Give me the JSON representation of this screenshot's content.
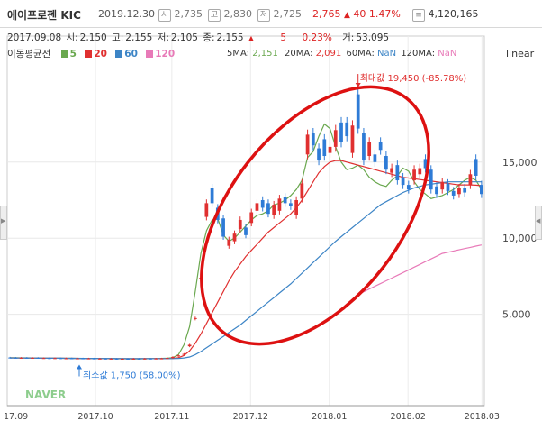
{
  "header": {
    "name": "에이프로젠 KIC",
    "date": "2019.12.30",
    "open_badge": "시",
    "open": "2,735",
    "high_badge": "고",
    "high": "2,830",
    "low_badge": "저",
    "low": "2,725",
    "close": "2,765",
    "change_arrow": "▲",
    "change": "40",
    "change_pct": "1.47%",
    "volume": "4,120,165"
  },
  "info": {
    "date": "2017.09.08",
    "open_label": "시:",
    "open": "2,150",
    "high_label": "고:",
    "high": "2,155",
    "low_label": "저:",
    "low": "2,105",
    "close_label": "종:",
    "close": "2,155",
    "arrow": "▲",
    "change": "5",
    "change_pct": "0.23%",
    "volume_label": "거:",
    "volume": "53,095"
  },
  "legend": {
    "title": "이동평균선",
    "items": [
      {
        "label": "5",
        "color": "#6aa84f"
      },
      {
        "label": "20",
        "color": "#e03030"
      },
      {
        "label": "60",
        "color": "#3d85c6"
      },
      {
        "label": "120",
        "color": "#e87ab8"
      }
    ]
  },
  "ma_values": {
    "ma5_label": "5MA:",
    "ma5": "2,151",
    "ma20_label": "20MA:",
    "ma20": "2,091",
    "ma60_label": "60MA:",
    "ma60": "NaN",
    "ma120_label": "120MA:",
    "ma120": "NaN"
  },
  "scale_label": "linear",
  "colors": {
    "up": "#e03030",
    "down": "#2e7bd6",
    "ma5": "#6aa84f",
    "ma20": "#e03030",
    "ma60": "#3d85c6",
    "ma120": "#e87ab8",
    "annotation_ellipse": "#dd1111"
  },
  "chart_data": {
    "type": "line",
    "yaxis": {
      "ticks": [
        5000,
        10000,
        15000
      ],
      "tick_labels": [
        "5,000",
        "10,000",
        "15,000"
      ],
      "range": [
        -1000,
        21500
      ],
      "side": "right"
    },
    "xaxis": {
      "tick_labels": [
        "17.09",
        "2017.10",
        "2017.11",
        "2017.12",
        "2018.01",
        "2018.02",
        "2018.03"
      ]
    },
    "annotations": {
      "max_label": "최대값 19,450 (-85.78%)",
      "max_value": 19450,
      "min_label": "최소값 1,750 (58.00%)",
      "min_value": 1750
    },
    "watermark": "NAVER",
    "series": [
      {
        "name": "5",
        "y": [
          2150,
          2145,
          2140,
          2140,
          2135,
          2130,
          2125,
          2120,
          2120,
          2115,
          2110,
          2110,
          2105,
          2100,
          2100,
          2095,
          2090,
          2085,
          2085,
          2080,
          2080,
          2075,
          2075,
          2075,
          2080,
          2085,
          2090,
          2100,
          2120,
          2150,
          2350,
          3000,
          4200,
          6500,
          9000,
          10500,
          11200,
          11300,
          10200,
          9800,
          10000,
          10400,
          10800,
          11200,
          11500,
          11600,
          11800,
          12200,
          12300,
          12500,
          12800,
          13200,
          13800,
          15300,
          15700,
          16700,
          17500,
          17200,
          16000,
          15000,
          14500,
          14600,
          14800,
          14500,
          14000,
          13700,
          13500,
          13400,
          13800,
          14100,
          14600,
          14400,
          13700,
          13200,
          12900,
          12600,
          12700,
          12800,
          13000,
          13200,
          13500,
          13800,
          14000,
          13800,
          13200
        ]
      },
      {
        "name": "20",
        "y": [
          2140,
          2135,
          2130,
          2128,
          2125,
          2122,
          2120,
          2118,
          2115,
          2112,
          2110,
          2108,
          2105,
          2103,
          2100,
          2098,
          2095,
          2092,
          2090,
          2088,
          2085,
          2084,
          2083,
          2082,
          2082,
          2083,
          2085,
          2088,
          2092,
          2100,
          2150,
          2300,
          2600,
          3100,
          3700,
          4400,
          5100,
          5800,
          6500,
          7200,
          7800,
          8300,
          8800,
          9200,
          9600,
          10000,
          10400,
          10700,
          11000,
          11300,
          11600,
          12000,
          12500,
          13100,
          13700,
          14300,
          14700,
          15000,
          15100,
          15100,
          15000,
          14900,
          14800,
          14700,
          14600,
          14500,
          14400,
          14300,
          14200,
          14100,
          14000,
          13950,
          13900,
          13850,
          13800,
          13750,
          13700,
          13650,
          13600,
          13550,
          13500,
          13500,
          13500,
          13480,
          13450
        ]
      },
      {
        "name": "60",
        "y": [
          2130,
          2128,
          2126,
          2124,
          2122,
          2120,
          2118,
          2116,
          2114,
          2112,
          2110,
          2108,
          2106,
          2104,
          2102,
          2100,
          2098,
          2096,
          2094,
          2092,
          2090,
          2089,
          2088,
          2087,
          2086,
          2086,
          2086,
          2087,
          2088,
          2090,
          2100,
          2130,
          2200,
          2350,
          2550,
          2800,
          3050,
          3300,
          3550,
          3800,
          4050,
          4300,
          4600,
          4900,
          5200,
          5500,
          5800,
          6100,
          6400,
          6700,
          7000,
          7350,
          7700,
          8050,
          8400,
          8750,
          9100,
          9450,
          9800,
          10100,
          10400,
          10700,
          11000,
          11300,
          11600,
          11900,
          12200,
          12400,
          12600,
          12800,
          13000,
          13150,
          13300,
          13400,
          13500,
          13550,
          13600,
          13650,
          13700,
          13700,
          13700,
          13700,
          13700,
          13700,
          13700
        ]
      },
      {
        "name": "120",
        "y": [
          null,
          null,
          null,
          null,
          null,
          null,
          null,
          null,
          null,
          null,
          null,
          null,
          null,
          null,
          null,
          null,
          null,
          null,
          null,
          null,
          null,
          null,
          null,
          null,
          null,
          null,
          null,
          null,
          null,
          null,
          null,
          null,
          null,
          null,
          null,
          null,
          null,
          null,
          null,
          null,
          null,
          null,
          null,
          null,
          null,
          null,
          null,
          null,
          null,
          null,
          null,
          null,
          null,
          null,
          null,
          null,
          null,
          null,
          null,
          null,
          null,
          null,
          6300,
          6480,
          6660,
          6840,
          7020,
          7200,
          7380,
          7560,
          7740,
          7920,
          8100,
          8280,
          8460,
          8640,
          8820,
          9000,
          9080,
          9160,
          9240,
          9320,
          9400,
          9480,
          9560
        ]
      }
    ],
    "candles": [
      [
        2160,
        2150
      ],
      [
        2150,
        2140
      ],
      [
        2140,
        2145
      ],
      [
        2145,
        2130
      ],
      [
        2135,
        2140
      ],
      [
        2140,
        2120
      ],
      [
        2120,
        2125
      ],
      [
        2125,
        2110
      ],
      [
        2115,
        2120
      ],
      [
        2120,
        2105
      ],
      [
        2105,
        2110
      ],
      [
        2110,
        2100
      ],
      [
        2100,
        2105
      ],
      [
        2105,
        2090
      ],
      [
        2095,
        2100
      ],
      [
        2100,
        2085
      ],
      [
        2085,
        2090
      ],
      [
        2090,
        2075
      ],
      [
        2080,
        2085
      ],
      [
        2085,
        2070
      ],
      [
        2070,
        2080
      ],
      [
        2080,
        2070
      ],
      [
        2075,
        2085
      ],
      [
        2085,
        2080
      ],
      [
        2080,
        2090
      ],
      [
        2090,
        2085
      ],
      [
        2085,
        2095
      ],
      [
        2095,
        2100
      ],
      [
        2100,
        2130
      ],
      [
        2130,
        2200
      ],
      [
        2250,
        2300
      ],
      [
        2350,
        2400
      ],
      [
        2900,
        3000
      ],
      [
        4700,
        4750
      ],
      [
        7300,
        7400
      ],
      [
        11400,
        12300
      ],
      [
        13300,
        12300
      ],
      [
        12000,
        11200
      ],
      [
        11300,
        10100
      ],
      [
        9500,
        9900
      ],
      [
        9800,
        10300
      ],
      [
        10600,
        11200
      ],
      [
        10700,
        10200
      ],
      [
        11000,
        11700
      ],
      [
        11800,
        12300
      ],
      [
        12500,
        12000
      ],
      [
        12300,
        11600
      ],
      [
        11500,
        12200
      ],
      [
        11800,
        12600
      ],
      [
        12700,
        12300
      ],
      [
        12300,
        12100
      ],
      [
        11500,
        12500
      ],
      [
        12600,
        13600
      ],
      [
        15500,
        16800
      ],
      [
        16900,
        16100
      ],
      [
        15900,
        15100
      ],
      [
        16500,
        15400
      ],
      [
        15600,
        16000
      ],
      [
        16000,
        17100
      ],
      [
        17600,
        16300
      ],
      [
        17600,
        16700
      ],
      [
        15600,
        17400
      ],
      [
        19450,
        17200
      ],
      [
        16900,
        15100
      ],
      [
        15400,
        16300
      ],
      [
        15500,
        15000
      ],
      [
        16300,
        15800
      ],
      [
        15400,
        14500
      ],
      [
        14300,
        14600
      ],
      [
        14800,
        13800
      ],
      [
        14000,
        13500
      ],
      [
        13500,
        13200
      ],
      [
        13800,
        14500
      ],
      [
        14200,
        14600
      ],
      [
        15200,
        14600
      ],
      [
        14500,
        13200
      ],
      [
        13400,
        12900
      ],
      [
        13200,
        13700
      ],
      [
        13600,
        13100
      ],
      [
        13100,
        12800
      ],
      [
        12900,
        13300
      ],
      [
        13300,
        13000
      ],
      [
        13500,
        14200
      ],
      [
        15200,
        14100
      ],
      [
        13500,
        12900
      ]
    ]
  }
}
